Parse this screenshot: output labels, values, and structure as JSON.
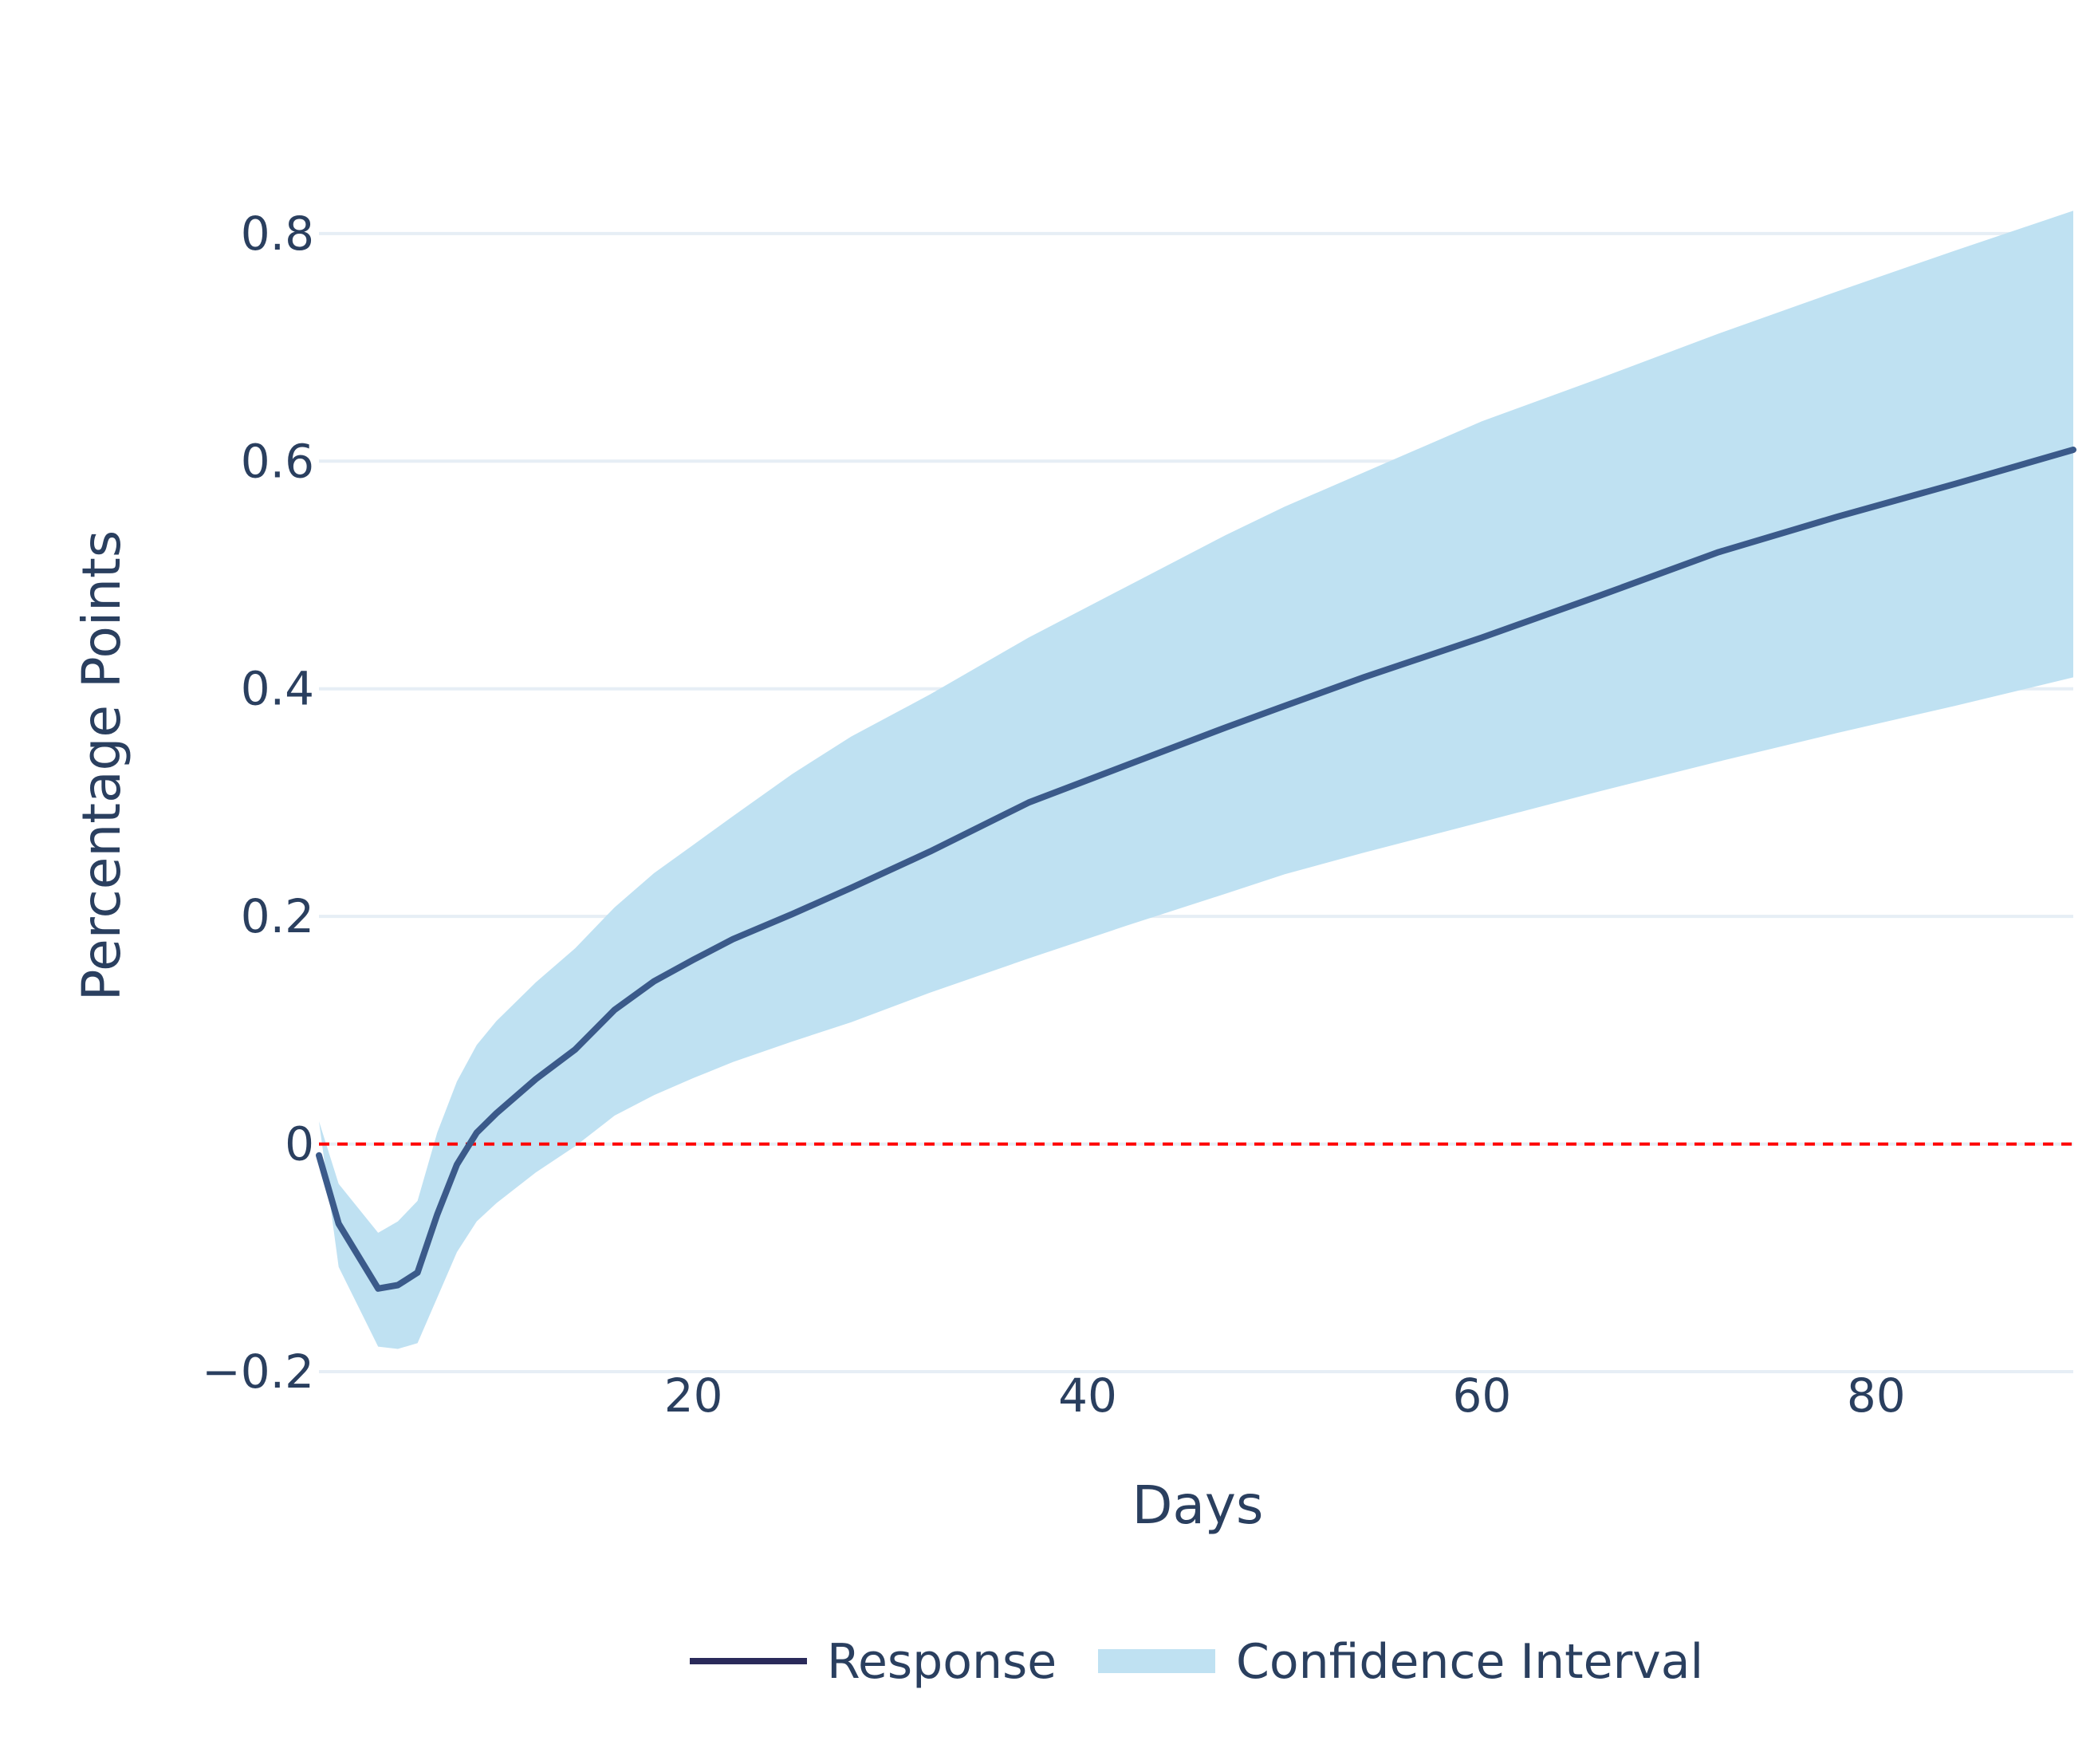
{
  "chart_data": {
    "type": "line",
    "title": "",
    "xlabel": "Days",
    "ylabel": "Percentage Points",
    "xlim": [
      1,
      90
    ],
    "ylim": [
      -0.2,
      0.83
    ],
    "x_ticks": [
      20,
      40,
      60,
      80
    ],
    "y_ticks": [
      {
        "value": -0.2,
        "label": "−0.2"
      },
      {
        "value": 0,
        "label": "0"
      },
      {
        "value": 0.2,
        "label": "0.2"
      },
      {
        "value": 0.4,
        "label": "0.4"
      },
      {
        "value": 0.6,
        "label": "0.6"
      },
      {
        "value": 0.8,
        "label": "0.8"
      }
    ],
    "grid": true,
    "reference_line": {
      "y": 0,
      "style": "dashed",
      "color": "#ff0000"
    },
    "legend": {
      "placement": "bottom-center",
      "orientation": "horizontal"
    },
    "colors": {
      "response": "#3b5a8a",
      "response_legend": "#2a2a5a",
      "band": "#bfe1f2",
      "grid": "#e6eef5",
      "text": "#2a3f5f"
    },
    "series": [
      {
        "name": "Response",
        "kind": "line",
        "x": [
          1,
          2,
          4,
          5,
          6,
          7,
          8,
          9,
          10,
          12,
          14,
          16,
          18,
          20,
          22,
          25,
          28,
          32,
          37,
          42,
          47,
          50,
          54,
          60,
          66,
          72,
          78,
          84,
          90
        ],
        "y": [
          -0.01,
          -0.07,
          -0.127,
          -0.124,
          -0.113,
          -0.062,
          -0.018,
          0.01,
          0.027,
          0.057,
          0.083,
          0.118,
          0.143,
          0.162,
          0.18,
          0.202,
          0.225,
          0.257,
          0.3,
          0.333,
          0.366,
          0.385,
          0.41,
          0.445,
          0.482,
          0.52,
          0.551,
          0.58,
          0.61
        ]
      },
      {
        "name": "Confidence Interval",
        "kind": "band",
        "x": [
          1,
          2,
          4,
          5,
          6,
          7,
          8,
          9,
          10,
          12,
          14,
          16,
          18,
          20,
          22,
          25,
          28,
          32,
          37,
          42,
          47,
          50,
          54,
          60,
          66,
          72,
          78,
          84,
          90
        ],
        "lower": [
          0.02,
          -0.108,
          -0.178,
          -0.18,
          -0.175,
          -0.135,
          -0.095,
          -0.068,
          -0.052,
          -0.025,
          -0.002,
          0.025,
          0.043,
          0.058,
          0.072,
          0.09,
          0.107,
          0.133,
          0.163,
          0.192,
          0.22,
          0.237,
          0.256,
          0.283,
          0.31,
          0.336,
          0.361,
          0.385,
          0.41
        ],
        "upper": [
          0.02,
          -0.035,
          -0.078,
          -0.068,
          -0.05,
          0.01,
          0.055,
          0.087,
          0.108,
          0.142,
          0.172,
          0.208,
          0.238,
          0.263,
          0.288,
          0.325,
          0.358,
          0.395,
          0.445,
          0.49,
          0.535,
          0.56,
          0.59,
          0.635,
          0.673,
          0.712,
          0.749,
          0.785,
          0.82
        ]
      }
    ]
  }
}
